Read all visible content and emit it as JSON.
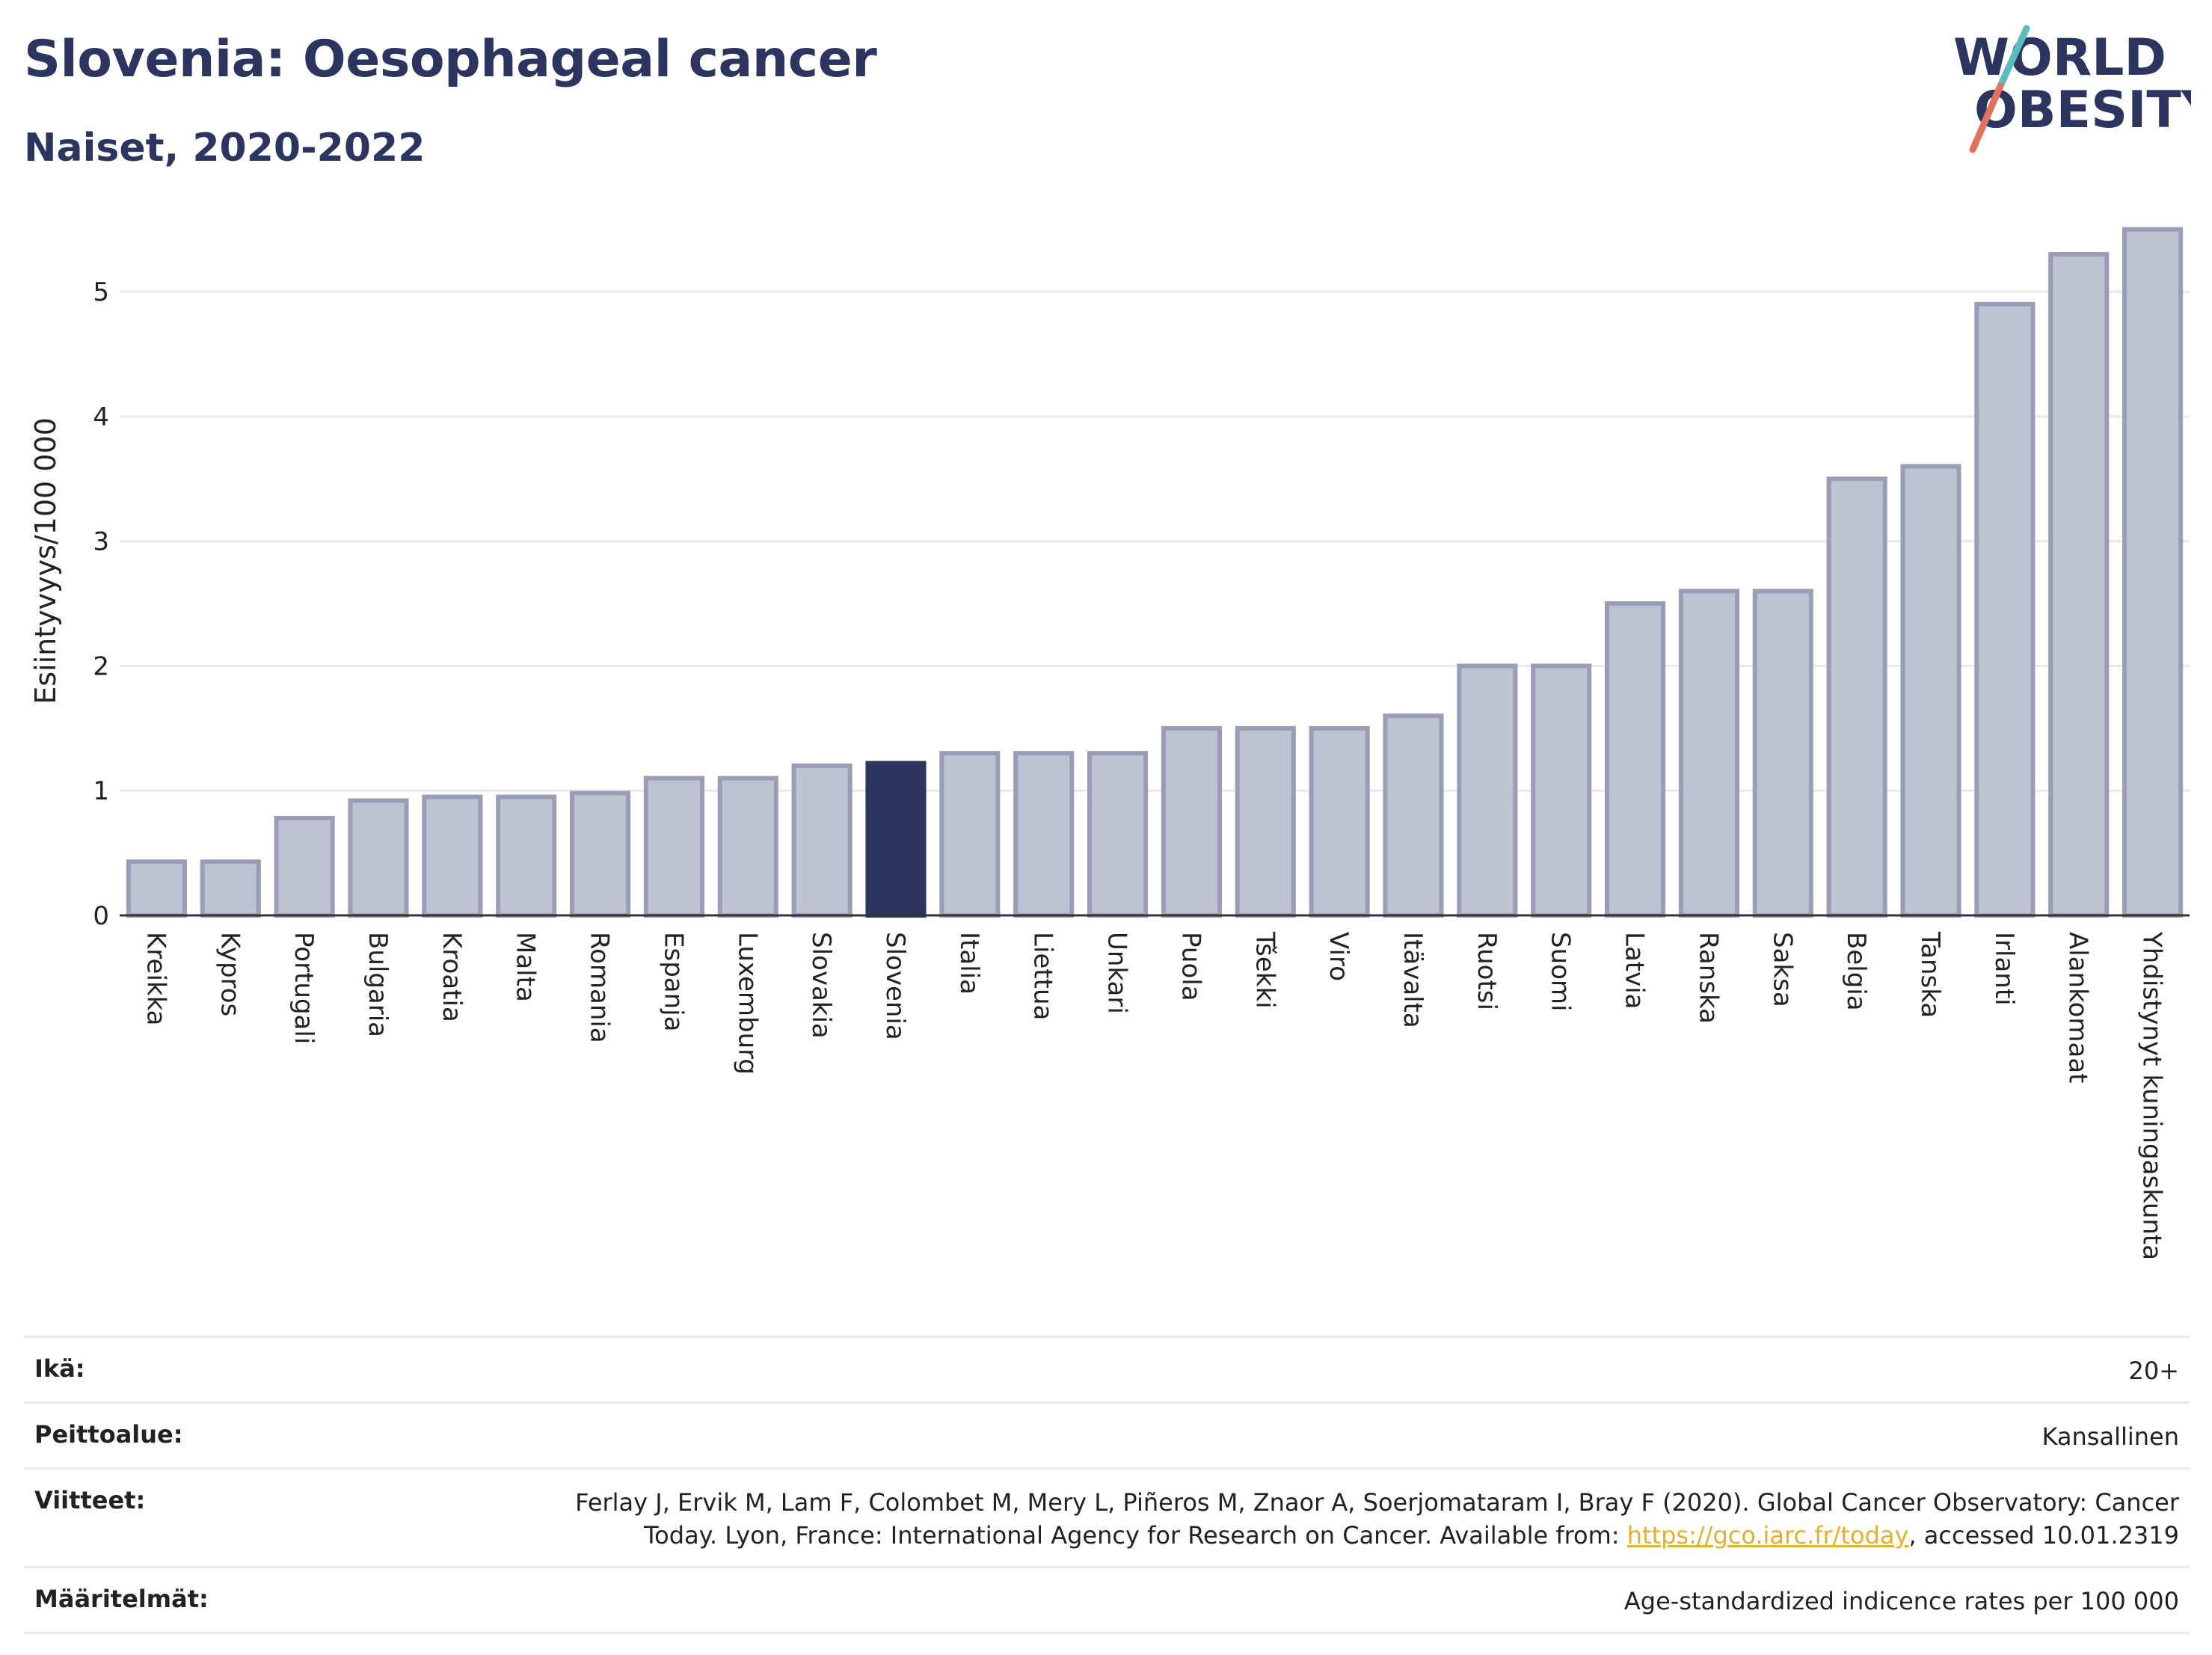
{
  "header": {
    "title": "Slovenia: Oesophageal cancer",
    "subtitle": "Naiset, 2020-2022"
  },
  "logo": {
    "line1": "WORLD",
    "line2": "OBESITY",
    "accent_colors": [
      "#5bbcbf",
      "#e2725b"
    ]
  },
  "colors": {
    "bar_default": "#bfc2d0",
    "bar_border": "#9a9db5",
    "bar_highlight": "#2b3560",
    "grid": "#e6e8ec"
  },
  "chart_data": {
    "type": "bar",
    "ylabel": "Esiintyvyys/100 000",
    "ylim": [
      0,
      5.6
    ],
    "yticks": [
      0,
      1,
      2,
      3,
      4,
      5
    ],
    "grid": true,
    "highlight": "Slovenia",
    "categories": [
      "Kreikka",
      "Kypros",
      "Portugali",
      "Bulgaria",
      "Kroatia",
      "Malta",
      "Romania",
      "Espanja",
      "Luxemburg",
      "Slovakia",
      "Slovenia",
      "Italia",
      "Liettua",
      "Unkari",
      "Puola",
      "Tšekki",
      "Viro",
      "Itävalta",
      "Ruotsi",
      "Suomi",
      "Latvia",
      "Ranska",
      "Saksa",
      "Belgia",
      "Tanska",
      "Irlanti",
      "Alankomaat",
      "Yhdistynyt kuningaskunta"
    ],
    "values": [
      0.43,
      0.43,
      0.78,
      0.92,
      0.95,
      0.95,
      0.98,
      1.1,
      1.1,
      1.2,
      1.22,
      1.3,
      1.3,
      1.3,
      1.5,
      1.5,
      1.5,
      1.6,
      2.0,
      2.0,
      2.5,
      2.6,
      2.6,
      3.5,
      3.6,
      4.9,
      5.3,
      5.5
    ]
  },
  "info": {
    "age_label": "Ikä:",
    "age_value": "20+",
    "coverage_label": "Peittoalue:",
    "coverage_value": "Kansallinen",
    "references_label": "Viitteet:",
    "references_line1": "Ferlay J, Ervik M, Lam F, Colombet M, Mery L, Piñeros M, Znaor A, Soerjomataram I, Bray F (2020). Global Cancer Observatory: Cancer",
    "references_line2_pre": "Today. Lyon, France: International Agency for Research on Cancer. Available from: ",
    "references_link": "https://gco.iarc.fr/today",
    "references_line2_post": ", accessed 10.01.2319",
    "definitions_label": "Määritelmät:",
    "definitions_value": "Age-standardized indicence rates per 100 000"
  }
}
